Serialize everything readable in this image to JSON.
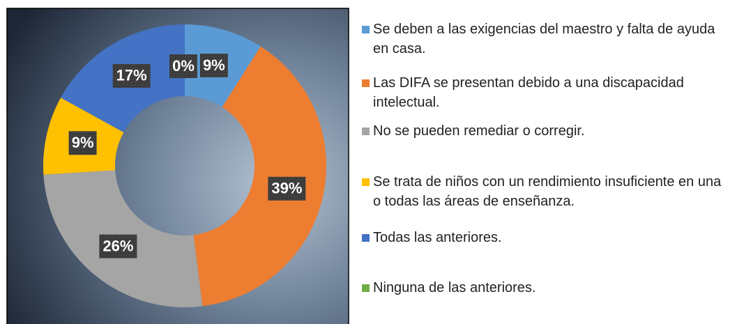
{
  "chart_data": {
    "type": "donut",
    "categories": [
      "Se deben a las exigencias del maestro y falta de ayuda en casa.",
      "Las DIFA se presentan debido a una discapacidad intelectual.",
      "No se pueden remediar o corregir.",
      "Se trata de niños con un rendimiento insuficiente en una o todas las áreas de enseñanza.",
      "Todas las anteriores.",
      "Ninguna de las anteriores."
    ],
    "values": [
      9,
      39,
      26,
      9,
      17,
      0
    ],
    "value_labels": [
      "9%",
      "39%",
      "26%",
      "9%",
      "17%",
      "0%"
    ],
    "colors": [
      "#5b9bd5",
      "#ed7d31",
      "#a5a5a5",
      "#ffc000",
      "#4472c4",
      "#70ad47"
    ],
    "legend": "right"
  }
}
